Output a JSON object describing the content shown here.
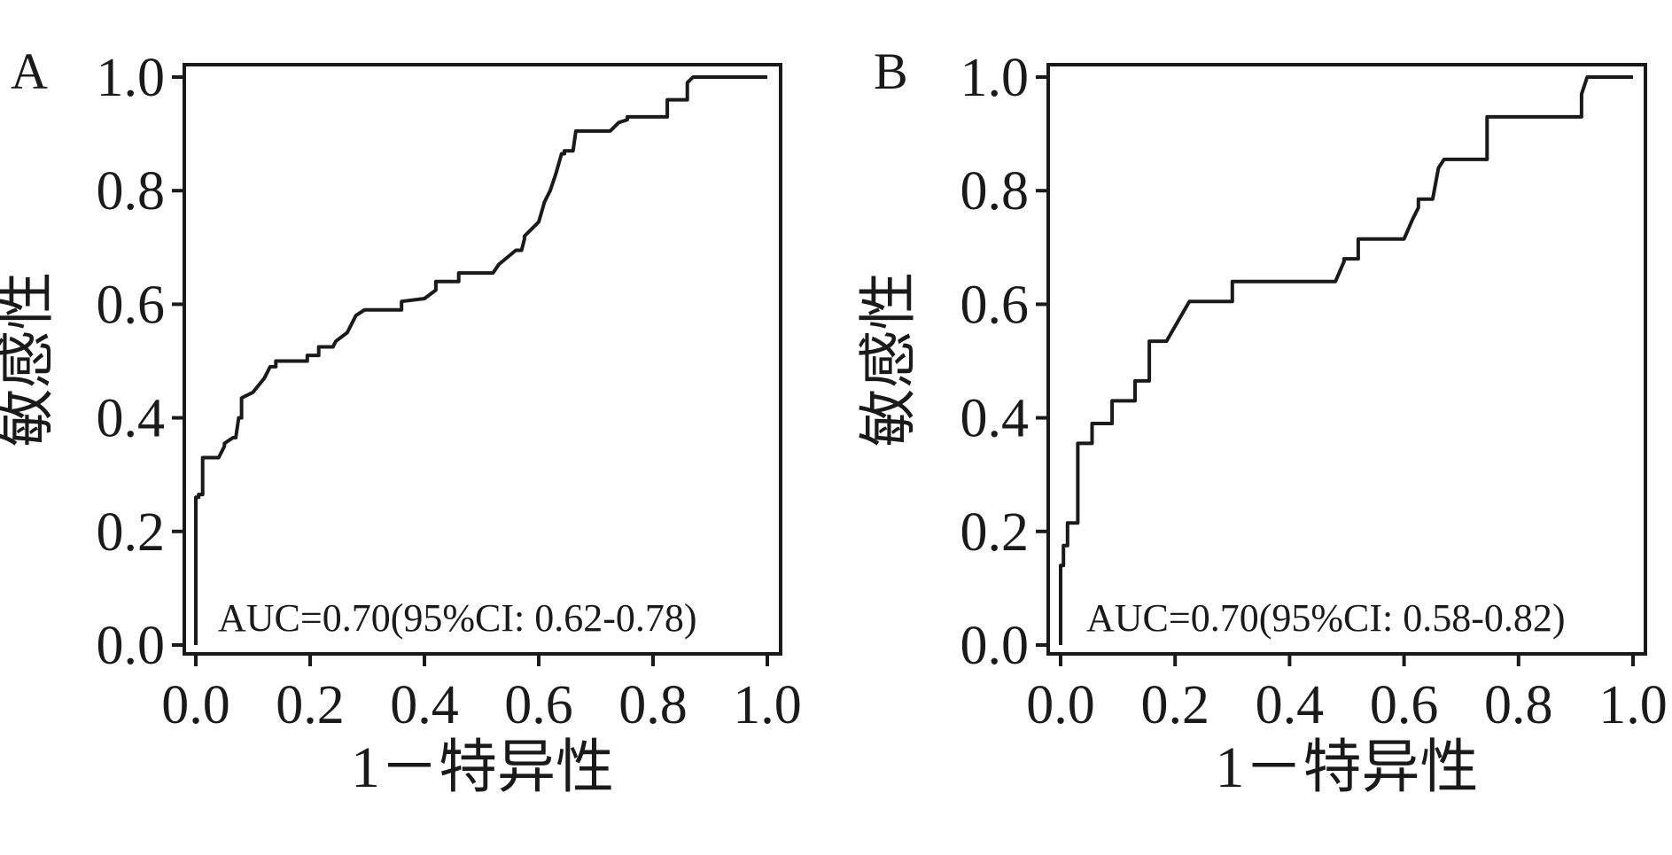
{
  "chart_data": [
    {
      "type": "line",
      "panel_label": "A",
      "xlabel": "1－特异性",
      "ylabel": "敏感性",
      "xlim": [
        0,
        1
      ],
      "ylim": [
        0,
        1
      ],
      "xticks": [
        "0.0",
        "0.2",
        "0.4",
        "0.6",
        "0.8",
        "1.0"
      ],
      "yticks": [
        "0.0",
        "0.2",
        "0.4",
        "0.6",
        "0.8",
        "1.0"
      ],
      "grid": false,
      "annotation": "AUC=0.70(95%CI: 0.62-0.78)",
      "series": [
        {
          "x": [
            0.0,
            0.0,
            0.005,
            0.005,
            0.012,
            0.012,
            0.04,
            0.05,
            0.05,
            0.065,
            0.07,
            0.075,
            0.08,
            0.08,
            0.1,
            0.12,
            0.13,
            0.14,
            0.14,
            0.15,
            0.195,
            0.195,
            0.215,
            0.215,
            0.24,
            0.245,
            0.265,
            0.28,
            0.295,
            0.31,
            0.36,
            0.36,
            0.4,
            0.42,
            0.42,
            0.46,
            0.46,
            0.52,
            0.53,
            0.56,
            0.57,
            0.575,
            0.575,
            0.6,
            0.61,
            0.62,
            0.63,
            0.64,
            0.645,
            0.645,
            0.66,
            0.665,
            0.725,
            0.74,
            0.755,
            0.755,
            0.825,
            0.825,
            0.86,
            0.86,
            0.87,
            0.88,
            1.0
          ],
          "y": [
            0.0,
            0.26,
            0.26,
            0.265,
            0.265,
            0.33,
            0.33,
            0.35,
            0.355,
            0.365,
            0.365,
            0.4,
            0.4,
            0.435,
            0.445,
            0.47,
            0.49,
            0.49,
            0.5,
            0.5,
            0.5,
            0.51,
            0.51,
            0.525,
            0.525,
            0.535,
            0.55,
            0.58,
            0.59,
            0.59,
            0.59,
            0.605,
            0.61,
            0.625,
            0.64,
            0.64,
            0.655,
            0.655,
            0.67,
            0.695,
            0.695,
            0.715,
            0.72,
            0.745,
            0.78,
            0.8,
            0.83,
            0.865,
            0.865,
            0.87,
            0.87,
            0.905,
            0.905,
            0.92,
            0.925,
            0.93,
            0.93,
            0.96,
            0.96,
            0.99,
            1.0,
            1.0,
            1.0
          ]
        }
      ]
    },
    {
      "type": "line",
      "panel_label": "B",
      "xlabel": "1－特异性",
      "ylabel": "敏感性",
      "xlim": [
        0,
        1
      ],
      "ylim": [
        0,
        1
      ],
      "xticks": [
        "0.0",
        "0.2",
        "0.4",
        "0.6",
        "0.8",
        "1.0"
      ],
      "yticks": [
        "0.0",
        "0.2",
        "0.4",
        "0.6",
        "0.8",
        "1.0"
      ],
      "grid": false,
      "annotation": "AUC=0.70(95%CI: 0.58-0.82)",
      "series": [
        {
          "x": [
            0.0,
            0.0,
            0.005,
            0.005,
            0.012,
            0.012,
            0.03,
            0.03,
            0.055,
            0.055,
            0.09,
            0.09,
            0.13,
            0.13,
            0.155,
            0.155,
            0.185,
            0.225,
            0.3,
            0.3,
            0.42,
            0.48,
            0.495,
            0.495,
            0.52,
            0.52,
            0.6,
            0.615,
            0.625,
            0.625,
            0.65,
            0.66,
            0.67,
            0.745,
            0.745,
            0.91,
            0.91,
            0.92,
            1.0
          ],
          "y": [
            0.0,
            0.14,
            0.14,
            0.175,
            0.175,
            0.215,
            0.215,
            0.355,
            0.355,
            0.39,
            0.39,
            0.43,
            0.43,
            0.465,
            0.465,
            0.535,
            0.535,
            0.605,
            0.605,
            0.64,
            0.64,
            0.64,
            0.675,
            0.68,
            0.68,
            0.715,
            0.715,
            0.75,
            0.77,
            0.785,
            0.785,
            0.84,
            0.855,
            0.855,
            0.93,
            0.93,
            0.97,
            1.0,
            1.0
          ]
        }
      ]
    }
  ]
}
